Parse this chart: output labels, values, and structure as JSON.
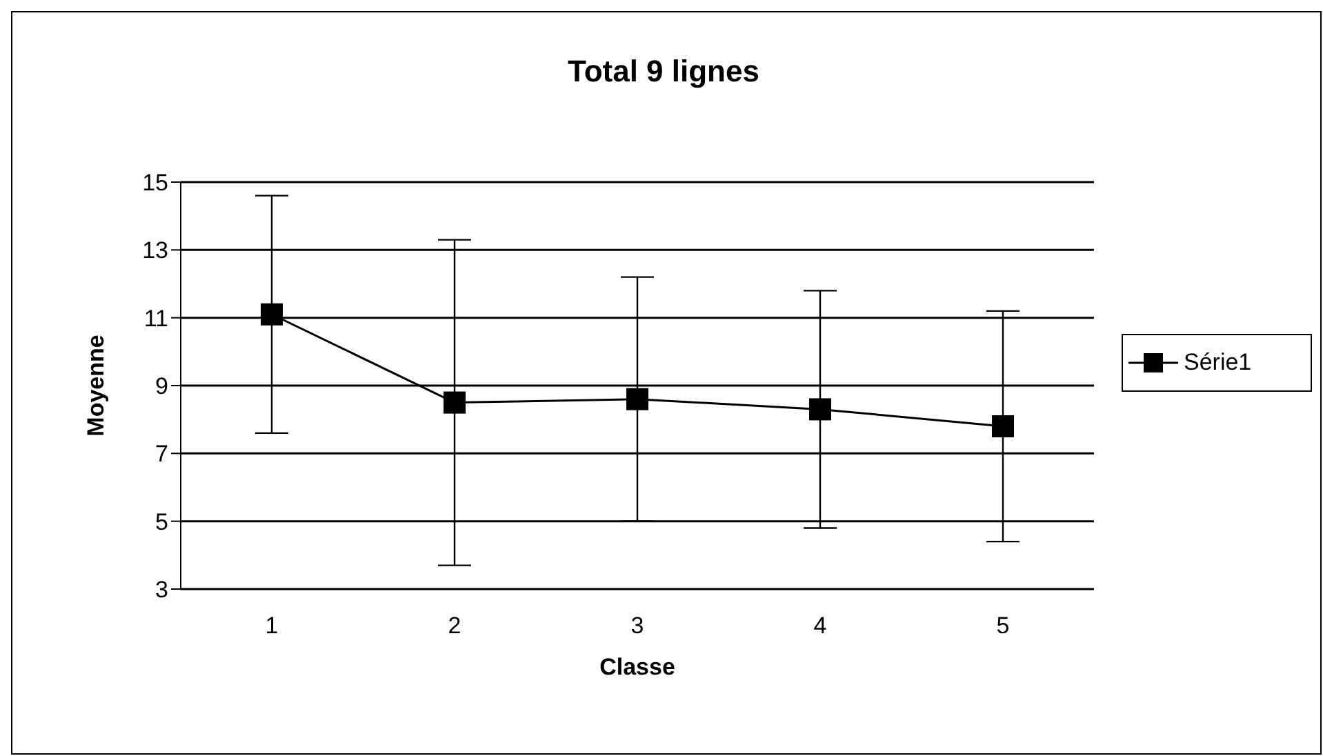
{
  "chart_data": {
    "type": "line",
    "title": "Total 9 lignes",
    "xlabel": "Classe",
    "ylabel": "Moyenne",
    "categories": [
      "1",
      "2",
      "3",
      "4",
      "5"
    ],
    "series": [
      {
        "name": "Série1",
        "color": "#000000",
        "values": [
          11.1,
          8.5,
          8.6,
          8.3,
          7.8
        ],
        "errors": [
          3.5,
          4.8,
          3.6,
          3.5,
          3.4
        ]
      }
    ],
    "ylim": [
      3,
      15
    ],
    "yticks": [
      3,
      5,
      7,
      9,
      11,
      13,
      15
    ],
    "grid": "y",
    "legend": "right",
    "marker": "square",
    "line_style": "solid"
  }
}
